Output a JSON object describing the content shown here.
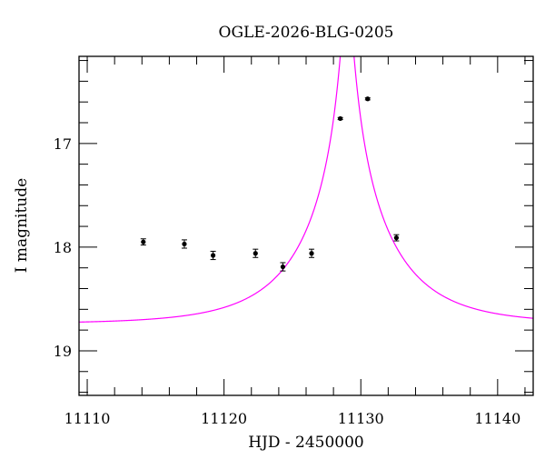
{
  "chart_data": {
    "type": "scatter",
    "title": "OGLE-2026-BLG-0205",
    "xlabel": "HJD - 2450000",
    "ylabel": "I magnitude",
    "xlim": [
      11109.4,
      11142.6
    ],
    "ylim": [
      19.43,
      16.16
    ],
    "y_inverted": true,
    "xticks": [
      11110,
      11120,
      11130,
      11140
    ],
    "xtick_labels": [
      "11110",
      "11120",
      "11130",
      "11140"
    ],
    "yticks": [
      17,
      18,
      19
    ],
    "ytick_labels": [
      "17",
      "18",
      "19"
    ],
    "x_minor_step": 2,
    "y_minor_step": 0.2,
    "grid": false,
    "series": [
      {
        "name": "data",
        "color": "#000000",
        "x": [
          11114.1,
          11117.1,
          11119.2,
          11122.3,
          11124.3,
          11126.4,
          11128.5,
          11130.5,
          11132.6
        ],
        "y": [
          17.95,
          17.97,
          18.08,
          18.06,
          18.19,
          18.06,
          16.76,
          16.57,
          17.91
        ],
        "yerr": [
          0.03,
          0.04,
          0.04,
          0.04,
          0.04,
          0.04,
          0.01,
          0.01,
          0.03
        ]
      },
      {
        "name": "model",
        "color": "#ff00ff",
        "kind": "pspl",
        "t0": 11129.0,
        "tE": 6.4,
        "u0": 0.05,
        "baseline_mag": 18.74
      }
    ]
  }
}
